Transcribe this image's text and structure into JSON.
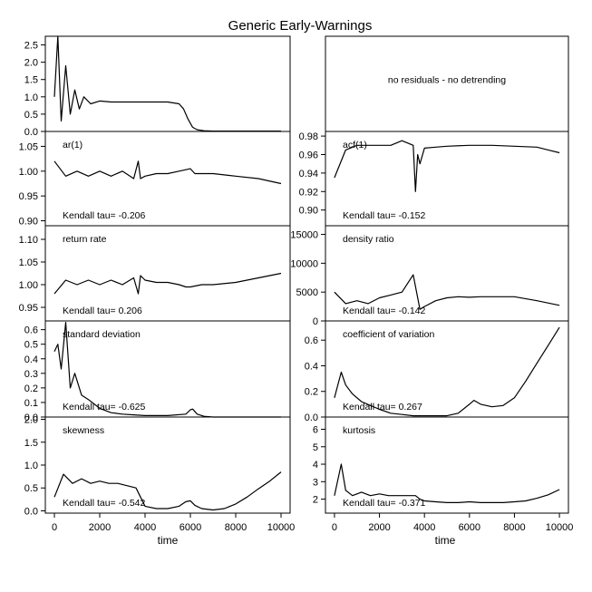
{
  "title": "Generic Early-Warnings",
  "xlabel": "time",
  "chart_data": [
    {
      "type": "line",
      "title": "",
      "ylim": [
        0,
        2.75
      ],
      "yticks": [
        "0.0",
        "0.5",
        "1.0",
        "1.5",
        "2.0",
        "2.5"
      ],
      "ytick_values": [
        0,
        0.5,
        1,
        1.5,
        2,
        2.5
      ],
      "stat": "",
      "x": [
        0,
        150,
        300,
        500,
        700,
        900,
        1100,
        1300,
        1600,
        2000,
        2500,
        3000,
        3500,
        4000,
        4500,
        5000,
        5500,
        5700,
        5900,
        6100,
        6300,
        6600,
        7000,
        8000,
        9000,
        10000
      ],
      "y": [
        1.0,
        2.75,
        0.3,
        1.9,
        0.5,
        1.2,
        0.65,
        1.0,
        0.8,
        0.88,
        0.85,
        0.85,
        0.85,
        0.85,
        0.85,
        0.85,
        0.8,
        0.65,
        0.35,
        0.12,
        0.05,
        0.02,
        0.01,
        0.01,
        0.01,
        0.01
      ]
    },
    {
      "type": "text",
      "message": "no residuals - no detrending"
    },
    {
      "type": "line",
      "title": "ar(1)",
      "ylim": [
        0.89,
        1.08
      ],
      "yticks": [
        "0.90",
        "0.95",
        "1.00",
        "1.05"
      ],
      "ytick_values": [
        0.9,
        0.95,
        1.0,
        1.05
      ],
      "stat": "Kendall tau= -0.206",
      "x": [
        0,
        500,
        1000,
        1500,
        2000,
        2500,
        3000,
        3500,
        3700,
        3800,
        4000,
        4500,
        5000,
        5500,
        6000,
        6200,
        6500,
        7000,
        8000,
        9000,
        10000
      ],
      "y": [
        1.02,
        0.99,
        1.0,
        0.99,
        1.0,
        0.99,
        1.0,
        0.985,
        1.02,
        0.985,
        0.99,
        0.995,
        0.995,
        1.0,
        1.005,
        0.995,
        0.995,
        0.995,
        0.99,
        0.985,
        0.975
      ]
    },
    {
      "type": "line",
      "title": "acf(1)",
      "ylim": [
        0.883,
        0.985
      ],
      "yticks": [
        "0.90",
        "0.92",
        "0.94",
        "0.96",
        "0.98"
      ],
      "ytick_values": [
        0.9,
        0.92,
        0.94,
        0.96,
        0.98
      ],
      "stat": "Kendall tau= -0.152",
      "x": [
        0,
        500,
        1000,
        1500,
        2000,
        2500,
        3000,
        3500,
        3600,
        3700,
        3800,
        4000,
        4500,
        5000,
        6000,
        7000,
        8000,
        9000,
        9500,
        10000
      ],
      "y": [
        0.935,
        0.965,
        0.97,
        0.97,
        0.97,
        0.97,
        0.975,
        0.97,
        0.92,
        0.96,
        0.95,
        0.967,
        0.968,
        0.969,
        0.97,
        0.97,
        0.969,
        0.968,
        0.965,
        0.962
      ]
    },
    {
      "type": "line",
      "title": "return rate",
      "ylim": [
        0.92,
        1.13
      ],
      "yticks": [
        "0.95",
        "1.00",
        "1.05",
        "1.10"
      ],
      "ytick_values": [
        0.95,
        1.0,
        1.05,
        1.1
      ],
      "stat": "Kendall tau= 0.206",
      "x": [
        0,
        500,
        1000,
        1500,
        2000,
        2500,
        3000,
        3500,
        3700,
        3800,
        4000,
        4500,
        5000,
        5500,
        5800,
        6000,
        6500,
        7000,
        8000,
        9000,
        10000
      ],
      "y": [
        0.98,
        1.01,
        1.0,
        1.01,
        1.0,
        1.01,
        1.0,
        1.015,
        0.98,
        1.02,
        1.01,
        1.005,
        1.005,
        1.0,
        0.995,
        0.995,
        1.0,
        1.0,
        1.005,
        1.015,
        1.025
      ]
    },
    {
      "type": "line",
      "title": "density ratio",
      "ylim": [
        0,
        16500
      ],
      "yticks": [
        "0",
        "5000",
        "10000",
        "15000"
      ],
      "ytick_values": [
        0,
        5000,
        10000,
        15000
      ],
      "stat": "Kendall tau= -0.142",
      "x": [
        0,
        500,
        1000,
        1500,
        2000,
        2500,
        3000,
        3500,
        3800,
        4000,
        4500,
        5000,
        5500,
        6000,
        6500,
        7000,
        8000,
        9000,
        10000
      ],
      "y": [
        5000,
        3000,
        3500,
        3000,
        4000,
        4500,
        5000,
        8000,
        2000,
        2500,
        3500,
        4000,
        4200,
        4100,
        4200,
        4200,
        4200,
        3500,
        2700
      ]
    },
    {
      "type": "line",
      "title": "standard deviation",
      "ylim": [
        0,
        0.66
      ],
      "yticks": [
        "0.0",
        "0.1",
        "0.2",
        "0.3",
        "0.4",
        "0.5",
        "0.6"
      ],
      "ytick_values": [
        0,
        0.1,
        0.2,
        0.3,
        0.4,
        0.5,
        0.6
      ],
      "stat": "Kendall tau= -0.625",
      "x": [
        0,
        150,
        300,
        500,
        700,
        900,
        1200,
        1500,
        2000,
        2500,
        3000,
        3500,
        4000,
        5000,
        5800,
        6000,
        6100,
        6300,
        6600,
        7000,
        8000,
        9000,
        10000
      ],
      "y": [
        0.45,
        0.5,
        0.33,
        0.65,
        0.2,
        0.3,
        0.15,
        0.12,
        0.06,
        0.03,
        0.02,
        0.015,
        0.01,
        0.01,
        0.02,
        0.05,
        0.055,
        0.02,
        0.005,
        0.0,
        0.0,
        0.0,
        0.0
      ]
    },
    {
      "type": "line",
      "title": "coefficient of variation",
      "ylim": [
        0,
        0.75
      ],
      "yticks": [
        "0.0",
        "0.2",
        "0.4",
        "0.6"
      ],
      "ytick_values": [
        0,
        0.2,
        0.4,
        0.6
      ],
      "stat": "Kendall tau= 0.267",
      "x": [
        0,
        300,
        500,
        800,
        1200,
        1600,
        2000,
        2500,
        3000,
        3500,
        4000,
        4500,
        5000,
        5500,
        6000,
        6200,
        6500,
        7000,
        7500,
        8000,
        8500,
        9000,
        9500,
        10000
      ],
      "y": [
        0.15,
        0.35,
        0.25,
        0.18,
        0.12,
        0.09,
        0.06,
        0.03,
        0.02,
        0.01,
        0.01,
        0.01,
        0.01,
        0.03,
        0.1,
        0.13,
        0.1,
        0.08,
        0.09,
        0.15,
        0.28,
        0.42,
        0.56,
        0.7
      ]
    },
    {
      "type": "line",
      "title": "skewness",
      "ylim": [
        -0.05,
        2.05
      ],
      "yticks": [
        "0.0",
        "0.5",
        "1.0",
        "1.5",
        "2.0"
      ],
      "ytick_values": [
        0,
        0.5,
        1,
        1.5,
        2
      ],
      "stat": "Kendall tau= -0.542",
      "x": [
        0,
        400,
        800,
        1200,
        1600,
        2000,
        2400,
        2800,
        3200,
        3600,
        3800,
        4000,
        4500,
        5000,
        5500,
        5800,
        6000,
        6200,
        6500,
        7000,
        7500,
        8000,
        8500,
        9000,
        9500,
        10000
      ],
      "y": [
        0.3,
        0.8,
        0.6,
        0.7,
        0.6,
        0.65,
        0.6,
        0.6,
        0.55,
        0.5,
        0.3,
        0.1,
        0.05,
        0.05,
        0.1,
        0.2,
        0.22,
        0.12,
        0.05,
        0.02,
        0.05,
        0.15,
        0.3,
        0.48,
        0.65,
        0.85
      ]
    },
    {
      "type": "line",
      "title": "kurtosis",
      "ylim": [
        1.2,
        6.7
      ],
      "yticks": [
        "2",
        "3",
        "4",
        "5",
        "6"
      ],
      "ytick_values": [
        2,
        3,
        4,
        5,
        6
      ],
      "stat": "Kendall tau= -0.371",
      "x": [
        0,
        300,
        500,
        800,
        1200,
        1600,
        2000,
        2400,
        2800,
        3200,
        3600,
        3800,
        4000,
        4500,
        5000,
        5500,
        6000,
        6500,
        7000,
        7500,
        8000,
        8500,
        9000,
        9500,
        10000
      ],
      "y": [
        2.2,
        4.0,
        2.5,
        2.2,
        2.4,
        2.2,
        2.3,
        2.2,
        2.2,
        2.2,
        2.2,
        2.0,
        1.9,
        1.85,
        1.8,
        1.8,
        1.85,
        1.8,
        1.8,
        1.8,
        1.85,
        1.9,
        2.05,
        2.25,
        2.55
      ]
    }
  ],
  "xticks": [
    "0",
    "2000",
    "4000",
    "6000",
    "8000",
    "10000"
  ],
  "xtick_values": [
    0,
    2000,
    4000,
    6000,
    8000,
    10000
  ],
  "xlim": [
    -400,
    10400
  ]
}
